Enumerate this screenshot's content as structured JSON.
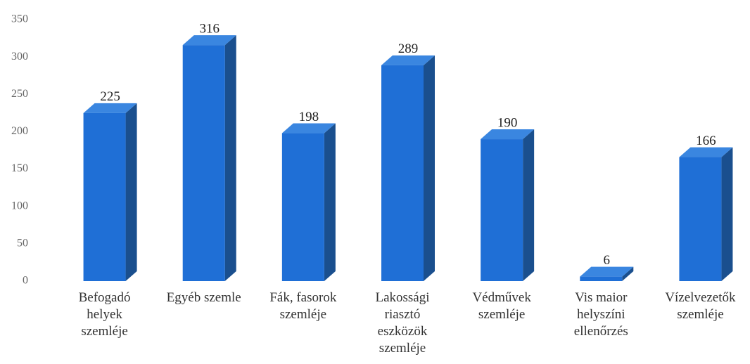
{
  "chart_data": {
    "type": "bar3d",
    "categories": [
      "Befogadó helyek szemléje",
      "Egyéb szemle",
      "Fák, fasorok szemléje",
      "Lakossági riasztó eszközök szemléje",
      "Védművek szemléje",
      "Vis maior helyszíni ellenőrzés",
      "Vízelvezetők szemléje"
    ],
    "values": [
      225,
      316,
      198,
      289,
      190,
      6,
      166
    ],
    "color": "#1f6fd6",
    "side_color": "#1a4f8e",
    "top_color": "#3a86e0",
    "ylim": [
      0,
      350
    ],
    "yticks": [
      0,
      50,
      100,
      150,
      200,
      250,
      300,
      350
    ],
    "grid": false
  }
}
